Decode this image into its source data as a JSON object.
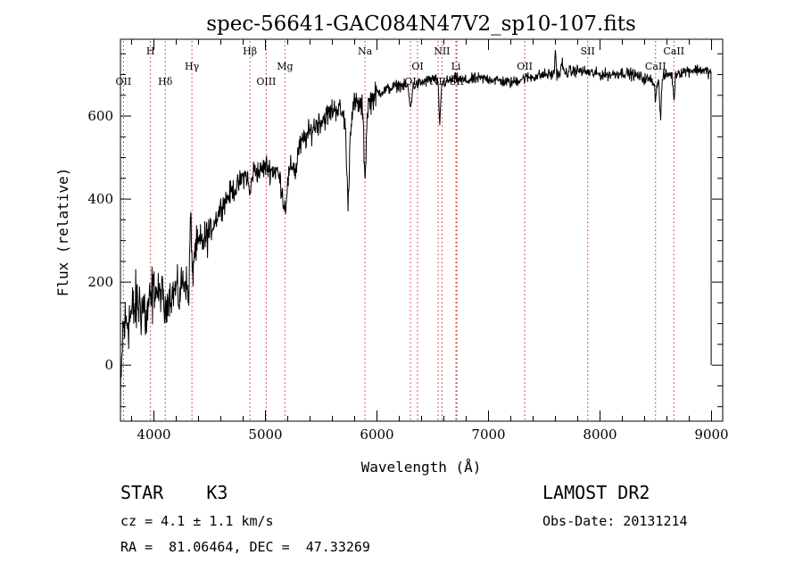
{
  "chart_data": {
    "type": "line",
    "title": "spec-56641-GAC084N47V2_sp10-107.fits",
    "xlabel": "Wavelength (Å)",
    "ylabel": "Flux (relative)",
    "xlim": [
      3700,
      9100
    ],
    "ylim": [
      -135,
      785
    ],
    "x_ticks": [
      4000,
      5000,
      6000,
      7000,
      8000,
      9000
    ],
    "x_tick_labels": [
      "4000",
      "5000",
      "6000",
      "7000",
      "8000",
      "9000"
    ],
    "y_ticks": [
      0,
      200,
      400,
      600
    ],
    "y_tick_labels": [
      "0",
      "200",
      "400",
      "600"
    ],
    "grid": false,
    "series_color": "#000000",
    "line_marker_color": "#cc2222",
    "spectrum_knots": [
      [
        3700,
        -120
      ],
      [
        3720,
        80
      ],
      [
        3760,
        110
      ],
      [
        3800,
        120
      ],
      [
        3850,
        150
      ],
      [
        3900,
        140
      ],
      [
        3950,
        170
      ],
      [
        4000,
        185
      ],
      [
        4050,
        170
      ],
      [
        4100,
        190
      ],
      [
        4150,
        165
      ],
      [
        4200,
        185
      ],
      [
        4250,
        200
      ],
      [
        4300,
        210
      ],
      [
        4350,
        270
      ],
      [
        4400,
        290
      ],
      [
        4450,
        300
      ],
      [
        4500,
        320
      ],
      [
        4550,
        350
      ],
      [
        4600,
        380
      ],
      [
        4650,
        400
      ],
      [
        4700,
        420
      ],
      [
        4750,
        430
      ],
      [
        4800,
        455
      ],
      [
        4850,
        460
      ],
      [
        4900,
        470
      ],
      [
        4950,
        465
      ],
      [
        5000,
        480
      ],
      [
        5050,
        470
      ],
      [
        5100,
        470
      ],
      [
        5150,
        430
      ],
      [
        5200,
        450
      ],
      [
        5250,
        490
      ],
      [
        5300,
        520
      ],
      [
        5350,
        545
      ],
      [
        5400,
        560
      ],
      [
        5450,
        580
      ],
      [
        5500,
        590
      ],
      [
        5550,
        600
      ],
      [
        5600,
        615
      ],
      [
        5650,
        620
      ],
      [
        5700,
        600
      ],
      [
        5750,
        590
      ],
      [
        5800,
        630
      ],
      [
        5850,
        625
      ],
      [
        5900,
        620
      ],
      [
        5950,
        640
      ],
      [
        6000,
        655
      ],
      [
        6100,
        665
      ],
      [
        6200,
        675
      ],
      [
        6300,
        670
      ],
      [
        6400,
        680
      ],
      [
        6500,
        690
      ],
      [
        6600,
        680
      ],
      [
        6700,
        690
      ],
      [
        6800,
        685
      ],
      [
        6900,
        690
      ],
      [
        7000,
        690
      ],
      [
        7100,
        685
      ],
      [
        7200,
        680
      ],
      [
        7300,
        690
      ],
      [
        7400,
        695
      ],
      [
        7500,
        700
      ],
      [
        7600,
        700
      ],
      [
        7700,
        705
      ],
      [
        7800,
        710
      ],
      [
        7900,
        705
      ],
      [
        8000,
        700
      ],
      [
        8100,
        700
      ],
      [
        8200,
        705
      ],
      [
        8300,
        700
      ],
      [
        8400,
        690
      ],
      [
        8500,
        685
      ],
      [
        8600,
        700
      ],
      [
        8700,
        705
      ],
      [
        8800,
        710
      ],
      [
        8900,
        712
      ],
      [
        8990,
        705
      ]
    ],
    "spectrum_dips": [
      [
        3934,
        -60,
        10
      ],
      [
        3968,
        -40,
        10
      ],
      [
        4102,
        -70,
        12
      ],
      [
        4227,
        -40,
        8
      ],
      [
        4308,
        -50,
        10
      ],
      [
        4341,
        -60,
        10
      ],
      [
        4861,
        -50,
        12
      ],
      [
        5175,
        -60,
        14
      ],
      [
        5270,
        -40,
        10
      ],
      [
        5740,
        -190,
        12
      ],
      [
        5893,
        -160,
        10
      ],
      [
        6300,
        -50,
        10
      ],
      [
        6563,
        -100,
        8
      ],
      [
        8498,
        -40,
        8
      ],
      [
        8542,
        -90,
        8
      ],
      [
        8662,
        -60,
        8
      ]
    ],
    "spectrum_spikes": [
      [
        4330,
        160,
        6
      ],
      [
        7600,
        60,
        5
      ],
      [
        7660,
        30,
        6
      ]
    ],
    "spectrum_end": [
      [
        8995,
        705
      ],
      [
        8996,
        450
      ],
      [
        8997,
        0
      ]
    ],
    "lines": [
      {
        "label": "OII",
        "wavelength": 3727,
        "row": 3
      },
      {
        "label": "H",
        "wavelength": 3969,
        "row": 1
      },
      {
        "label": "Hδ",
        "wavelength": 4102,
        "row": 3
      },
      {
        "label": "Hγ",
        "wavelength": 4341,
        "row": 2
      },
      {
        "label": "Hβ",
        "wavelength": 4861,
        "row": 1
      },
      {
        "label": "OIII",
        "wavelength": 5007,
        "row": 3
      },
      {
        "label": "Mg",
        "wavelength": 5175,
        "row": 2
      },
      {
        "label": "Na",
        "wavelength": 5893,
        "row": 1
      },
      {
        "label": "OI",
        "wavelength": 6300,
        "row": 3
      },
      {
        "label": "OI",
        "wavelength": 6364,
        "row": 2
      },
      {
        "label": "NII",
        "wavelength": 6548,
        "row": 3
      },
      {
        "label": "NII",
        "wavelength": 6583,
        "row": 1
      },
      {
        "label": "Li",
        "wavelength": 6708,
        "row": 2
      },
      {
        "label": "SII",
        "wavelength": 6716,
        "row": 3
      },
      {
        "label": "OII",
        "wavelength": 7325,
        "row": 2
      },
      {
        "label": "SII",
        "wavelength": 7890,
        "row": 1
      },
      {
        "label": "CaII",
        "wavelength": 8498,
        "row": 2
      },
      {
        "label": "CaII",
        "wavelength": 8662,
        "row": 1
      }
    ]
  },
  "info": {
    "object_class": "STAR",
    "subclass": "K3",
    "cz_text": "cz = 4.1 ± 1.1 km/s",
    "radec_text": "RA =  81.06464, DEC =  47.33269",
    "survey": "LAMOST DR2",
    "obs_date": "Obs-Date: 20131214"
  }
}
